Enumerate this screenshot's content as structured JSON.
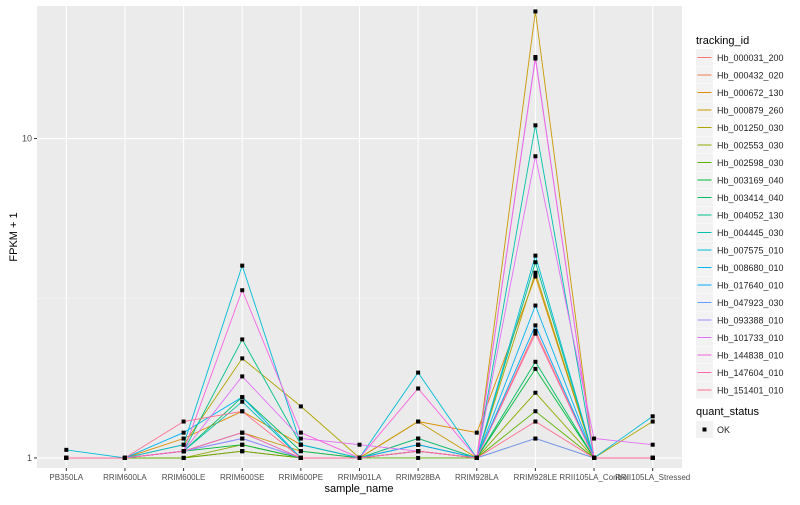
{
  "chart_data": {
    "type": "line",
    "scale": "log10",
    "xlabel": "sample_name",
    "ylabel": "FPKM + 1",
    "categories": [
      "PB350LA",
      "RRIM600LA",
      "RRIM600LE",
      "RRIM600SE",
      "RRIM600PE",
      "RRIM901LA",
      "RRIM928BA",
      "RRIM928LA",
      "RRIM928LE",
      "RRII105LA_Control",
      "RRII105LA_Stressed"
    ],
    "y_ticks": [
      {
        "value": 1,
        "label": "1"
      },
      {
        "value": 10,
        "label": "10"
      }
    ],
    "ylim": [
      0.93,
      26
    ],
    "legend": {
      "title": "tracking_id",
      "position": "right",
      "status_title": "quant_status",
      "status_label": "OK"
    },
    "series": [
      {
        "name": "Hb_000031_200",
        "color": "#F8766D",
        "values": [
          1.0,
          1.0,
          1.0,
          1.05,
          1.0,
          1.0,
          1.05,
          1.0,
          2.5,
          1.0,
          1.0
        ]
      },
      {
        "name": "Hb_000432_020",
        "color": "#EF7F48",
        "values": [
          1.0,
          1.0,
          1.0,
          1.05,
          1.0,
          1.0,
          1.1,
          1.0,
          1.15,
          1.0,
          1.0
        ]
      },
      {
        "name": "Hb_000672_130",
        "color": "#DE8C00",
        "values": [
          1.0,
          1.0,
          1.15,
          1.4,
          1.1,
          1.0,
          1.3,
          1.2,
          3.7,
          1.0,
          1.0
        ]
      },
      {
        "name": "Hb_000879_260",
        "color": "#C99800",
        "values": [
          1.0,
          1.0,
          1.05,
          1.2,
          1.05,
          1.0,
          1.3,
          1.0,
          25.0,
          1.0,
          1.0
        ]
      },
      {
        "name": "Hb_001250_030",
        "color": "#B0A300",
        "values": [
          1.0,
          1.0,
          1.1,
          2.05,
          1.45,
          1.0,
          1.15,
          1.0,
          3.8,
          1.0,
          1.3
        ]
      },
      {
        "name": "Hb_002553_030",
        "color": "#8FAA00",
        "values": [
          1.0,
          1.0,
          1.0,
          1.1,
          1.0,
          1.0,
          1.05,
          1.0,
          1.6,
          1.0,
          1.0
        ]
      },
      {
        "name": "Hb_002598_030",
        "color": "#5BB300",
        "values": [
          1.0,
          1.0,
          1.0,
          1.05,
          1.0,
          1.0,
          1.0,
          1.0,
          1.4,
          1.0,
          1.0
        ]
      },
      {
        "name": "Hb_003169_040",
        "color": "#00BA38",
        "values": [
          1.0,
          1.0,
          1.05,
          1.1,
          1.0,
          1.0,
          1.05,
          1.0,
          1.9,
          1.0,
          1.0
        ]
      },
      {
        "name": "Hb_003414_040",
        "color": "#00BD5F",
        "values": [
          1.0,
          1.0,
          1.05,
          1.55,
          1.05,
          1.0,
          1.1,
          1.0,
          2.0,
          1.0,
          1.0
        ]
      },
      {
        "name": "Hb_004052_130",
        "color": "#00C08B",
        "values": [
          1.0,
          1.0,
          1.05,
          2.35,
          1.1,
          1.0,
          1.15,
          1.0,
          4.1,
          1.0,
          1.0
        ]
      },
      {
        "name": "Hb_004445_030",
        "color": "#00C0AF",
        "values": [
          1.0,
          1.0,
          1.05,
          1.5,
          1.0,
          1.0,
          1.05,
          1.0,
          11.0,
          1.0,
          1.0
        ]
      },
      {
        "name": "Hb_007575_010",
        "color": "#00BCD8",
        "values": [
          1.06,
          1.0,
          1.1,
          4.0,
          1.1,
          1.0,
          1.85,
          1.0,
          4.3,
          1.0,
          1.35
        ]
      },
      {
        "name": "Hb_008680_010",
        "color": "#00B4F0",
        "values": [
          1.0,
          1.0,
          1.2,
          1.55,
          1.0,
          1.0,
          1.05,
          1.0,
          3.0,
          1.0,
          1.0
        ]
      },
      {
        "name": "Hb_017640_010",
        "color": "#00A9FF",
        "values": [
          1.0,
          1.0,
          1.05,
          1.15,
          1.0,
          1.0,
          1.1,
          1.0,
          2.6,
          1.0,
          1.0
        ]
      },
      {
        "name": "Hb_047923_030",
        "color": "#619CFF",
        "values": [
          1.0,
          1.0,
          1.05,
          1.2,
          1.0,
          1.0,
          1.05,
          1.0,
          1.15,
          1.0,
          1.0
        ]
      },
      {
        "name": "Hb_093388_010",
        "color": "#A58AFF",
        "values": [
          1.0,
          1.0,
          1.05,
          1.15,
          1.0,
          1.0,
          1.05,
          1.0,
          18.0,
          1.0,
          1.0
        ]
      },
      {
        "name": "Hb_101733_010",
        "color": "#E36EF6",
        "values": [
          1.0,
          1.0,
          1.05,
          1.8,
          1.15,
          1.1,
          1.05,
          1.0,
          8.8,
          1.15,
          1.1
        ]
      },
      {
        "name": "Hb_144838_010",
        "color": "#F763E0",
        "values": [
          1.0,
          1.0,
          1.05,
          3.35,
          1.2,
          1.0,
          1.65,
          1.0,
          17.8,
          1.0,
          1.0
        ]
      },
      {
        "name": "Hb_147604_010",
        "color": "#FF66A8",
        "values": [
          1.0,
          1.0,
          1.05,
          1.2,
          1.0,
          1.0,
          1.05,
          1.0,
          2.45,
          1.0,
          1.0
        ]
      },
      {
        "name": "Hb_151401_010",
        "color": "#FF6C91",
        "values": [
          1.0,
          1.0,
          1.3,
          1.4,
          1.0,
          1.0,
          1.05,
          1.0,
          1.3,
          1.0,
          1.0
        ]
      }
    ]
  }
}
